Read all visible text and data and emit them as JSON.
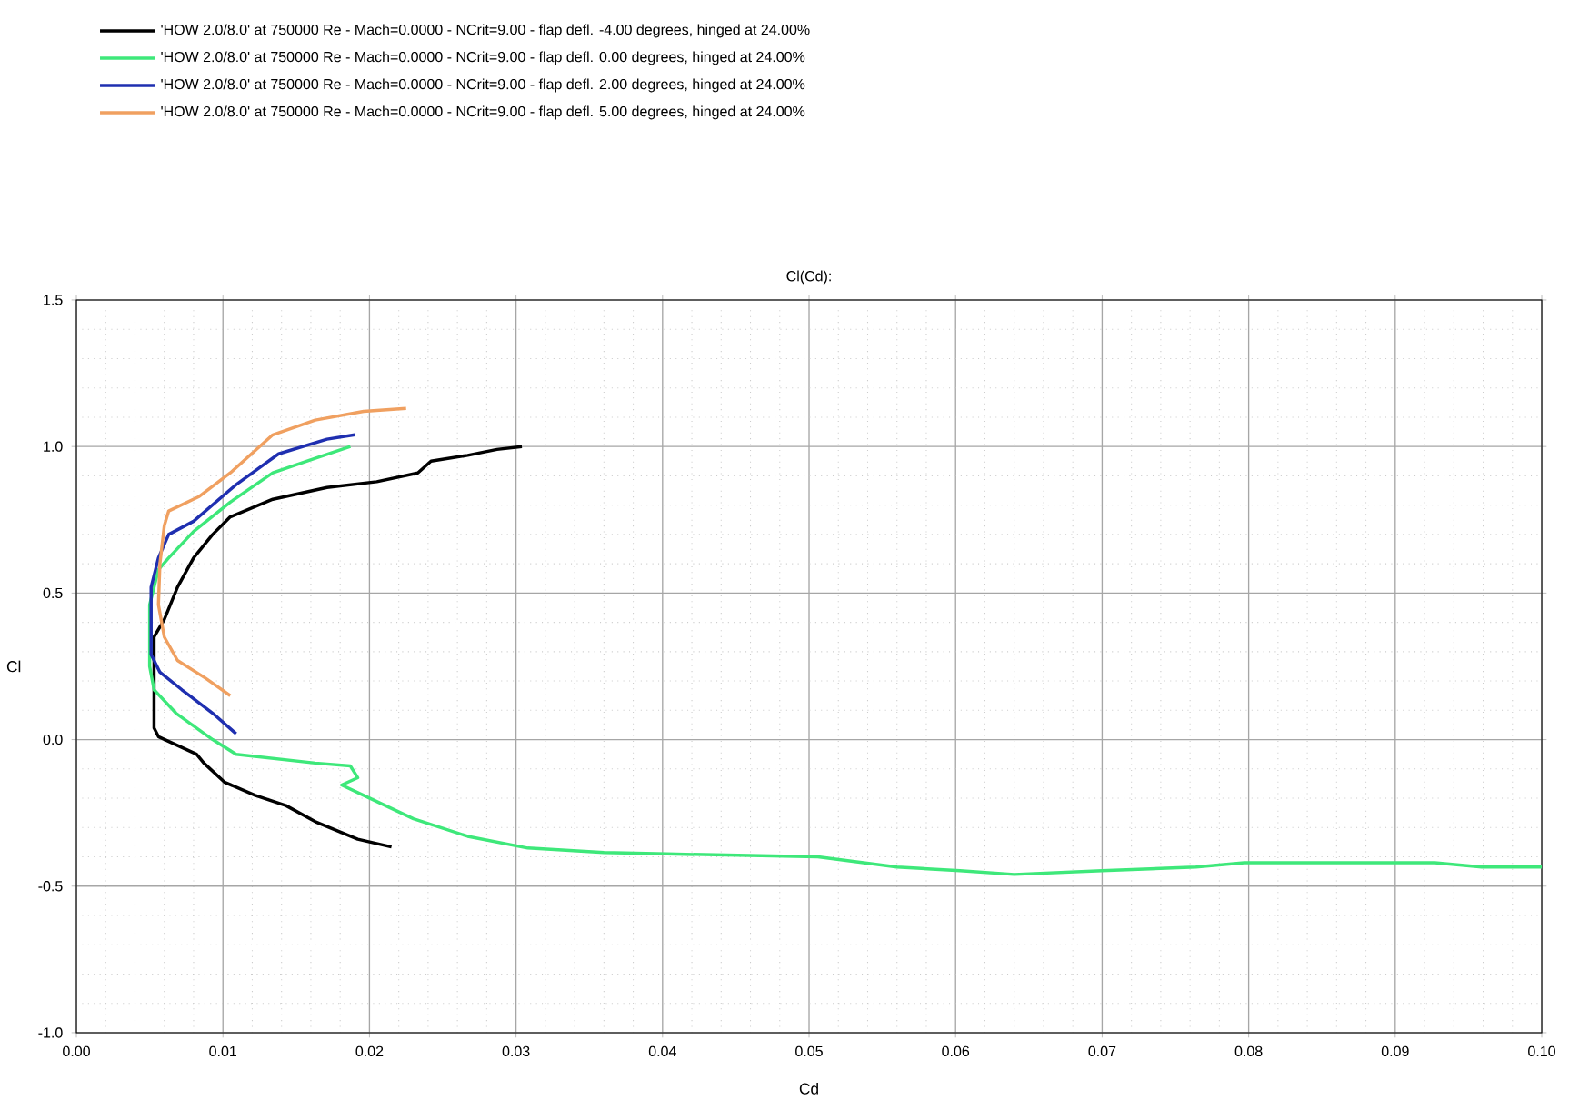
{
  "chart_data": {
    "type": "line",
    "title": "Cl(Cd):",
    "xlabel": "Cd",
    "ylabel": "Cl",
    "xlim": [
      0,
      0.1
    ],
    "ylim": [
      -1.0,
      1.5
    ],
    "xticks": [
      {
        "value": 0,
        "label": "0.00"
      },
      {
        "value": 0.01,
        "label": "0.01"
      },
      {
        "value": 0.02,
        "label": "0.02"
      },
      {
        "value": 0.03,
        "label": "0.03"
      },
      {
        "value": 0.04,
        "label": "0.04"
      },
      {
        "value": 0.05,
        "label": "0.05"
      },
      {
        "value": 0.06,
        "label": "0.06"
      },
      {
        "value": 0.07,
        "label": "0.07"
      },
      {
        "value": 0.08,
        "label": "0.08"
      },
      {
        "value": 0.09,
        "label": "0.09"
      },
      {
        "value": 0.1,
        "label": "0.10"
      }
    ],
    "yticks": [
      {
        "value": -1.0,
        "label": "-1.0"
      },
      {
        "value": -0.5,
        "label": "-0.5"
      },
      {
        "value": 0,
        "label": "0.0"
      },
      {
        "value": 0.5,
        "label": "0.5"
      },
      {
        "value": 1.0,
        "label": "1.0"
      },
      {
        "value": 1.5,
        "label": "1.5"
      }
    ],
    "grid": true,
    "legend": "top left",
    "series": [
      {
        "name": "'HOW 2.0/8.0' at 750000 Re - Mach=0.0000 - NCrit=9.00 - flap defl. -4.00 degrees, hinged at 24.00%",
        "color": "#000000",
        "x": [
          0.0215,
          0.0192,
          0.0163,
          0.0143,
          0.0122,
          0.0101,
          0.0087,
          0.0082,
          0.0056,
          0.0053,
          0.0053,
          0.006,
          0.0069,
          0.008,
          0.0093,
          0.0105,
          0.0134,
          0.0171,
          0.0205,
          0.0233,
          0.0242,
          0.0267,
          0.0287,
          0.0304
        ],
        "values": [
          -0.366,
          -0.34,
          -0.28,
          -0.225,
          -0.19,
          -0.145,
          -0.08,
          -0.05,
          0.01,
          0.04,
          0.35,
          0.41,
          0.52,
          0.62,
          0.7,
          0.76,
          0.82,
          0.86,
          0.88,
          0.91,
          0.95,
          0.97,
          0.99,
          1.0
        ]
      },
      {
        "name": "'HOW 2.0/8.0' at 750000 Re - Mach=0.0000 - NCrit=9.00 - flap defl. 0.00 degrees, hinged at 24.00%",
        "color": "#3ee87a",
        "x": [
          0.1,
          0.0959,
          0.0927,
          0.0797,
          0.0764,
          0.07,
          0.064,
          0.0603,
          0.056,
          0.0506,
          0.0403,
          0.036,
          0.0308,
          0.0267,
          0.023,
          0.0196,
          0.0181,
          0.0192,
          0.0187,
          0.0163,
          0.0109,
          0.0093,
          0.0068,
          0.0053,
          0.005,
          0.005,
          0.0056,
          0.0063,
          0.008,
          0.0105,
          0.0134,
          0.0163,
          0.0187
        ],
        "values": [
          -0.435,
          -0.435,
          -0.42,
          -0.42,
          -0.435,
          -0.447,
          -0.46,
          -0.447,
          -0.435,
          -0.4,
          -0.39,
          -0.385,
          -0.37,
          -0.33,
          -0.27,
          -0.19,
          -0.155,
          -0.13,
          -0.09,
          -0.08,
          -0.05,
          0.0,
          0.09,
          0.17,
          0.25,
          0.46,
          0.58,
          0.62,
          0.71,
          0.81,
          0.91,
          0.96,
          1.0
        ]
      },
      {
        "name": "'HOW 2.0/8.0' at 750000 Re - Mach=0.0000 - NCrit=9.00 - flap defl. 2.00 degrees, hinged at 24.00%",
        "color": "#1f2fb0",
        "x": [
          0.0109,
          0.0093,
          0.0072,
          0.0057,
          0.0051,
          0.0051,
          0.0056,
          0.0063,
          0.008,
          0.0109,
          0.0138,
          0.0171,
          0.019
        ],
        "values": [
          0.02,
          0.09,
          0.17,
          0.23,
          0.29,
          0.52,
          0.62,
          0.7,
          0.745,
          0.87,
          0.975,
          1.025,
          1.04
        ]
      },
      {
        "name": "'HOW 2.0/8.0' at 750000 Re - Mach=0.0000 - NCrit=9.00 - flap defl. 5.00 degrees, hinged at 24.00%",
        "color": "#f0a060",
        "x": [
          0.0105,
          0.0088,
          0.0069,
          0.006,
          0.0056,
          0.0057,
          0.006,
          0.0063,
          0.0084,
          0.0105,
          0.0134,
          0.0163,
          0.0196,
          0.0225
        ],
        "values": [
          0.15,
          0.21,
          0.27,
          0.35,
          0.46,
          0.6,
          0.73,
          0.78,
          0.83,
          0.91,
          1.04,
          1.09,
          1.12,
          1.13
        ]
      }
    ]
  }
}
